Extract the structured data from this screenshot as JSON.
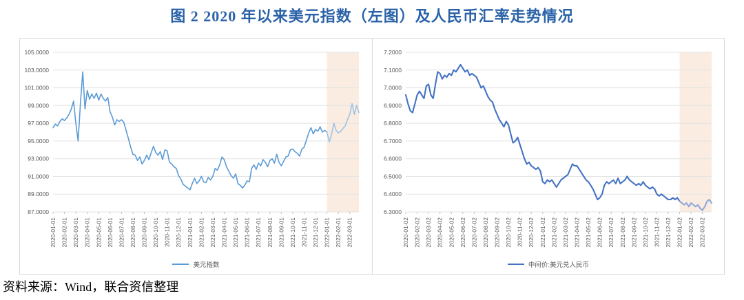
{
  "title": "图 2  2020 年以来美元指数（左图）及人民币汇率走势情况",
  "title_color": "#2a62a8",
  "source_note": "资料来源：Wind，联合资信整理",
  "panel_border_color": "#d9d9d9",
  "gridline_color": "#e3e3e3",
  "tick_color": "#c0c0c0",
  "label_color": "#595959",
  "chart_data": [
    {
      "type": "line",
      "name": "usd-index",
      "legend": "美元指数",
      "line_color": "#5b9bd5",
      "line_width": 1.6,
      "highlight_line_color": "#9dc3e6",
      "highlight_region_color": "#faece0",
      "highlight_start_label": "2022-01-01",
      "highlight_start": 24,
      "grid": true,
      "legend_position": "bottom",
      "ylim": [
        87,
        105
      ],
      "x_max": 26.8,
      "x_start": 0,
      "x_step": 0.2,
      "y_ticks": [
        "105.0000",
        "103.0000",
        "101.0000",
        "99.0000",
        "97.0000",
        "95.0000",
        "93.0000",
        "91.0000",
        "89.0000",
        "87.0000"
      ],
      "x_ticks": [
        "2020-01-01",
        "2020-02-01",
        "2020-03-01",
        "2020-04-01",
        "2020-05-01",
        "2020-06-01",
        "2020-07-01",
        "2020-08-01",
        "2020-09-01",
        "2020-10-01",
        "2020-11-01",
        "2020-12-01",
        "2021-01-01",
        "2021-02-01",
        "2021-03-01",
        "2021-04-01",
        "2021-05-01",
        "2021-06-01",
        "2021-07-01",
        "2021-08-01",
        "2021-09-01",
        "2021-10-01",
        "2021-11-01",
        "2021-12-01",
        "2022-01-01",
        "2022-02-01",
        "2022-03-01"
      ],
      "values": [
        96.5,
        96.9,
        96.7,
        97.2,
        97.5,
        97.3,
        97.6,
        98.0,
        98.6,
        99.5,
        97.0,
        95.0,
        99.3,
        102.8,
        98.6,
        100.7,
        99.7,
        100.3,
        99.8,
        100.4,
        99.6,
        100.3,
        99.8,
        99.5,
        99.9,
        98.3,
        97.7,
        96.8,
        97.4,
        97.2,
        97.4,
        97.1,
        96.2,
        95.3,
        94.3,
        93.5,
        93.4,
        92.8,
        93.2,
        92.4,
        92.8,
        93.4,
        92.9,
        93.7,
        94.4,
        93.7,
        93.4,
        93.8,
        92.9,
        94.0,
        93.9,
        92.6,
        92.4,
        92.1,
        91.9,
        91.1,
        90.7,
        90.1,
        89.9,
        89.7,
        89.5,
        90.2,
        90.8,
        90.2,
        90.5,
        91.0,
        90.4,
        90.3,
        90.9,
        90.6,
        91.0,
        91.9,
        91.7,
        92.3,
        93.2,
        92.9,
        92.1,
        91.6,
        91.1,
        90.8,
        91.3,
        90.2,
        90.0,
        89.7,
        90.0,
        90.5,
        90.4,
        91.9,
        92.3,
        91.8,
        92.5,
        92.2,
        92.9,
        92.6,
        92.1,
        92.8,
        93.0,
        92.5,
        93.5,
        92.6,
        92.2,
        92.7,
        93.2,
        93.3,
        94.0,
        94.1,
        93.8,
        93.6,
        93.3,
        94.1,
        94.3,
        95.1,
        95.9,
        96.5,
        95.8,
        96.3,
        96.1,
        96.6,
        96.0,
        96.2,
        96.0,
        94.9,
        95.7,
        97.0,
        96.2,
        95.9,
        96.1,
        96.4,
        96.7,
        97.4,
        98.0,
        99.2,
        98.0,
        99.0,
        98.2
      ]
    },
    {
      "type": "line",
      "name": "usdcny-central-parity",
      "legend": "中间价:美元兑人民币",
      "line_color": "#4472c4",
      "line_width": 2.1,
      "highlight_line_color": "#8fa8db",
      "highlight_region_color": "#faece0",
      "highlight_start_label": "2022-01-02",
      "highlight_start": 24,
      "grid": true,
      "legend_position": "bottom",
      "ylim": [
        6.3,
        7.2
      ],
      "x_max": 26.8,
      "x_start": 0,
      "x_step": 0.2,
      "y_ticks": [
        "7.2000",
        "7.1000",
        "7.0000",
        "6.9000",
        "6.8000",
        "6.7000",
        "6.6000",
        "6.5000",
        "6.4000",
        "6.3000"
      ],
      "x_ticks": [
        "2020-01-02",
        "2020-02-02",
        "2020-03-02",
        "2020-04-02",
        "2020-05-02",
        "2020-06-02",
        "2020-07-02",
        "2020-08-02",
        "2020-09-02",
        "2020-10-02",
        "2020-11-02",
        "2020-12-02",
        "2021-01-02",
        "2021-02-02",
        "2021-03-02",
        "2021-04-02",
        "2021-05-02",
        "2021-06-02",
        "2021-07-02",
        "2021-08-02",
        "2021-09-02",
        "2021-10-02",
        "2021-11-02",
        "2021-12-02",
        "2022-01-02",
        "2022-02-02",
        "2022-03-02"
      ],
      "values": [
        6.96,
        6.91,
        6.87,
        6.86,
        6.91,
        6.96,
        6.98,
        6.96,
        6.94,
        7.01,
        7.02,
        6.96,
        6.94,
        7.02,
        7.09,
        7.08,
        7.05,
        7.07,
        7.06,
        7.08,
        7.07,
        7.1,
        7.09,
        7.11,
        7.13,
        7.11,
        7.09,
        7.1,
        7.07,
        7.08,
        7.07,
        7.06,
        7.03,
        7.0,
        7.01,
        6.98,
        6.95,
        6.93,
        6.92,
        6.88,
        6.85,
        6.82,
        6.8,
        6.78,
        6.81,
        6.79,
        6.74,
        6.69,
        6.7,
        6.72,
        6.68,
        6.64,
        6.6,
        6.57,
        6.58,
        6.56,
        6.55,
        6.54,
        6.55,
        6.53,
        6.47,
        6.46,
        6.48,
        6.47,
        6.48,
        6.46,
        6.44,
        6.46,
        6.48,
        6.49,
        6.5,
        6.51,
        6.54,
        6.57,
        6.56,
        6.56,
        6.54,
        6.52,
        6.5,
        6.48,
        6.47,
        6.45,
        6.43,
        6.4,
        6.37,
        6.38,
        6.4,
        6.45,
        6.47,
        6.46,
        6.47,
        6.48,
        6.46,
        6.49,
        6.46,
        6.47,
        6.48,
        6.5,
        6.48,
        6.47,
        6.46,
        6.45,
        6.46,
        6.45,
        6.47,
        6.45,
        6.44,
        6.43,
        6.44,
        6.43,
        6.4,
        6.39,
        6.4,
        6.39,
        6.38,
        6.37,
        6.37,
        6.38,
        6.37,
        6.38,
        6.36,
        6.35,
        6.34,
        6.35,
        6.33,
        6.35,
        6.34,
        6.33,
        6.34,
        6.32,
        6.31,
        6.33,
        6.36,
        6.37,
        6.35
      ]
    }
  ]
}
